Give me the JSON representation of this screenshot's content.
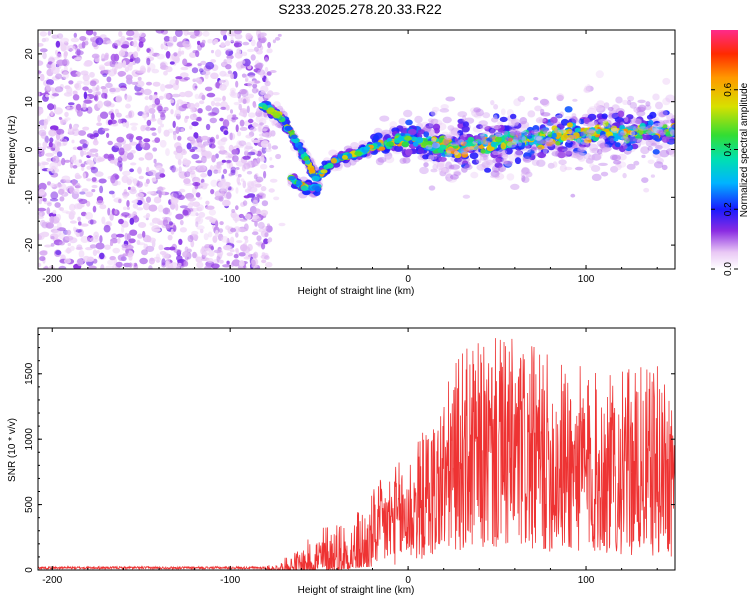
{
  "title": "S233.2025.278.20.33.R22",
  "chart_data": [
    {
      "type": "heatmap",
      "xlabel": "Height of straight line (km)",
      "ylabel": "Frequency (Hz)",
      "xlim": [
        -208,
        150
      ],
      "ylim": [
        -25,
        25
      ],
      "xticks": [
        -200,
        -100,
        0,
        100
      ],
      "yticks": [
        -20,
        -10,
        0,
        10,
        20
      ],
      "colorbar": {
        "label": "Normalized spectral amplitude",
        "range": [
          0.0,
          0.8
        ],
        "ticks": [
          "0.0",
          "0.2",
          "0.4",
          "0.6"
        ],
        "tick_values": [
          0.0,
          0.2,
          0.4,
          0.6
        ]
      },
      "ridge": [
        {
          "x": -80,
          "y": 9.0
        },
        {
          "x": -72,
          "y": 7.0
        },
        {
          "x": -65,
          "y": 3.0
        },
        {
          "x": -58,
          "y": -1.5
        },
        {
          "x": -52,
          "y": -6.0
        },
        {
          "x": -46,
          "y": -4.0
        },
        {
          "x": -38,
          "y": -1.5
        },
        {
          "x": -30,
          "y": -1.0
        },
        {
          "x": -20,
          "y": 0.5
        },
        {
          "x": -10,
          "y": 1.5
        },
        {
          "x": 0,
          "y": 2.5
        },
        {
          "x": 10,
          "y": 1.5
        },
        {
          "x": 25,
          "y": 0.5
        },
        {
          "x": 50,
          "y": 1.5
        },
        {
          "x": 75,
          "y": 2.5
        },
        {
          "x": 100,
          "y": 3.5
        },
        {
          "x": 125,
          "y": 3.5
        },
        {
          "x": 150,
          "y": 4.0
        }
      ],
      "secondary_ridge": [
        {
          "x": -66,
          "y": -6.0
        },
        {
          "x": -58,
          "y": -8.0
        },
        {
          "x": -50,
          "y": -8.0
        }
      ]
    },
    {
      "type": "line",
      "xlabel": "Height of straight line (km)",
      "ylabel": "SNR (10 * v/v)",
      "xlim": [
        -208,
        150
      ],
      "ylim": [
        0,
        1850
      ],
      "xticks": [
        -200,
        -100,
        0,
        100
      ],
      "yticks": [
        0,
        500,
        1000,
        1500
      ],
      "color": "#ee3333",
      "envelope": [
        {
          "x": -208,
          "y": 25
        },
        {
          "x": -100,
          "y": 25
        },
        {
          "x": -75,
          "y": 40
        },
        {
          "x": -60,
          "y": 180
        },
        {
          "x": -45,
          "y": 400
        },
        {
          "x": -30,
          "y": 450
        },
        {
          "x": -15,
          "y": 700
        },
        {
          "x": 0,
          "y": 900
        },
        {
          "x": 15,
          "y": 1200
        },
        {
          "x": 30,
          "y": 1700
        },
        {
          "x": 55,
          "y": 1800
        },
        {
          "x": 80,
          "y": 1650
        },
        {
          "x": 110,
          "y": 1500
        },
        {
          "x": 150,
          "y": 1600
        }
      ],
      "floor": [
        {
          "x": -208,
          "y": 0
        },
        {
          "x": -40,
          "y": 0
        },
        {
          "x": 0,
          "y": 50
        },
        {
          "x": 25,
          "y": 150
        },
        {
          "x": 60,
          "y": 150
        },
        {
          "x": 150,
          "y": 100
        }
      ]
    }
  ]
}
